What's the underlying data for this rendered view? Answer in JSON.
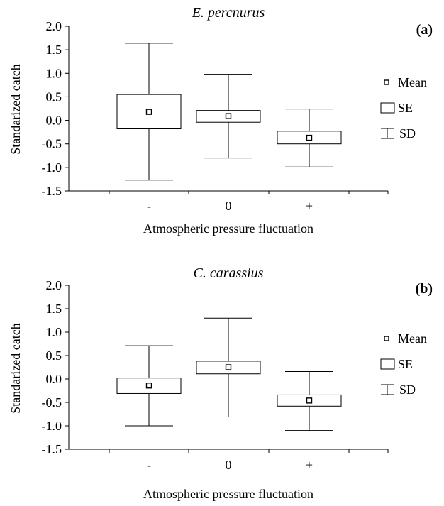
{
  "chart_data": [
    {
      "type": "box",
      "title": "E. percnurus",
      "panel_label": "(a)",
      "xlabel": "Atmospheric pressure fluctuation",
      "ylabel": "Standarized catch",
      "ylim": [
        -1.5,
        2.0
      ],
      "yticks": [
        "2.0",
        "1.5",
        "1.0",
        "0.5",
        "0.0",
        "-0.5",
        "-1.0",
        "-1.5"
      ],
      "categories": [
        "-",
        "0",
        "+"
      ],
      "groups": [
        {
          "category": "-",
          "mean": 0.18,
          "se_low": -0.18,
          "se_high": 0.55,
          "sd_low": -1.27,
          "sd_high": 1.64
        },
        {
          "category": "0",
          "mean": 0.09,
          "se_low": -0.04,
          "se_high": 0.21,
          "sd_low": -0.8,
          "sd_high": 0.98
        },
        {
          "category": "+",
          "mean": -0.37,
          "se_low": -0.5,
          "se_high": -0.23,
          "sd_low": -0.99,
          "sd_high": 0.24
        }
      ],
      "legend": [
        "Mean",
        "SE",
        "SD"
      ]
    },
    {
      "type": "box",
      "title": "C. carassius",
      "panel_label": "(b)",
      "xlabel": "Atmospheric pressure fluctuation",
      "ylabel": "Standarized catch",
      "ylim": [
        -1.5,
        2.0
      ],
      "yticks": [
        "2.0",
        "1.5",
        "1.0",
        "0.5",
        "0.0",
        "-0.5",
        "-1.0",
        "-1.5"
      ],
      "categories": [
        "-",
        "0",
        "+"
      ],
      "groups": [
        {
          "category": "-",
          "mean": -0.14,
          "se_low": -0.31,
          "se_high": 0.02,
          "sd_low": -1.0,
          "sd_high": 0.71
        },
        {
          "category": "0",
          "mean": 0.25,
          "se_low": 0.11,
          "se_high": 0.38,
          "sd_low": -0.81,
          "sd_high": 1.3
        },
        {
          "category": "+",
          "mean": -0.46,
          "se_low": -0.58,
          "se_high": -0.34,
          "sd_low": -1.1,
          "sd_high": 0.16
        }
      ],
      "legend": [
        "Mean",
        "SE",
        "SD"
      ]
    }
  ]
}
